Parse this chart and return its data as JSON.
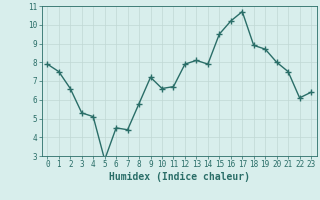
{
  "x": [
    0,
    1,
    2,
    3,
    4,
    5,
    6,
    7,
    8,
    9,
    10,
    11,
    12,
    13,
    14,
    15,
    16,
    17,
    18,
    19,
    20,
    21,
    22,
    23
  ],
  "y": [
    7.9,
    7.5,
    6.6,
    5.3,
    5.1,
    2.8,
    4.5,
    4.4,
    5.8,
    7.2,
    6.6,
    6.7,
    7.9,
    8.1,
    7.9,
    9.5,
    10.2,
    10.7,
    8.9,
    8.7,
    8.0,
    7.5,
    6.1,
    6.4
  ],
  "xlabel": "Humidex (Indice chaleur)",
  "ylim": [
    3,
    11
  ],
  "xlim_min": -0.5,
  "xlim_max": 23.5,
  "yticks": [
    3,
    4,
    5,
    6,
    7,
    8,
    9,
    10,
    11
  ],
  "xticks": [
    0,
    1,
    2,
    3,
    4,
    5,
    6,
    7,
    8,
    9,
    10,
    11,
    12,
    13,
    14,
    15,
    16,
    17,
    18,
    19,
    20,
    21,
    22,
    23
  ],
  "line_color": "#2a6e68",
  "marker": "+",
  "marker_size": 4,
  "marker_lw": 1.0,
  "bg_color": "#d8eeec",
  "grid_color": "#c0d8d4",
  "axis_color": "#2a6e68",
  "label_color": "#2a6e68",
  "tick_label_fontsize": 5.5,
  "xlabel_fontsize": 7.0,
  "line_width": 1.0
}
